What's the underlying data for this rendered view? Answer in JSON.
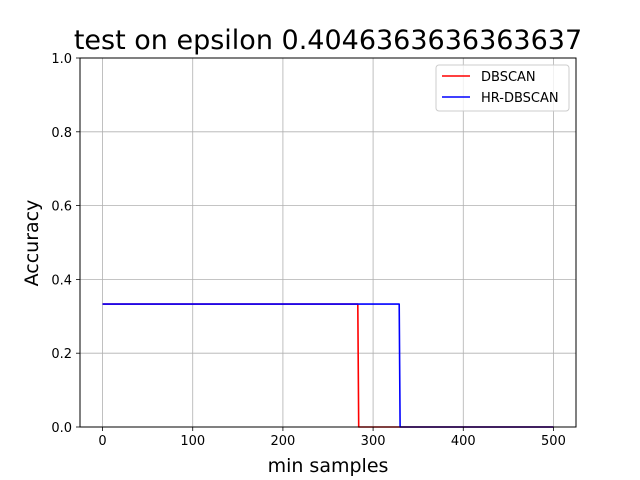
{
  "chart_data": {
    "type": "line",
    "title": "test on epsilon 0.4046363636363637",
    "xlabel": "min samples",
    "ylabel": "Accuracy",
    "xlim": [
      -25,
      525
    ],
    "ylim": [
      0.0,
      1.0
    ],
    "xticks": [
      0,
      100,
      200,
      300,
      400,
      500
    ],
    "yticks": [
      0.0,
      0.2,
      0.4,
      0.6,
      0.8,
      1.0
    ],
    "xtick_labels": [
      "0",
      "100",
      "200",
      "300",
      "400",
      "500"
    ],
    "ytick_labels": [
      "0.0",
      "0.2",
      "0.4",
      "0.6",
      "0.8",
      "1.0"
    ],
    "grid": true,
    "legend_position": "top-right",
    "series": [
      {
        "name": "DBSCAN",
        "color": "#ff0000",
        "x": [
          0,
          283,
          284,
          500
        ],
        "y": [
          0.333,
          0.333,
          0.0,
          0.0
        ]
      },
      {
        "name": "HR-DBSCAN",
        "color": "#0000ff",
        "x": [
          0,
          329,
          330,
          500
        ],
        "y": [
          0.333,
          0.333,
          0.0,
          0.0
        ]
      }
    ]
  }
}
